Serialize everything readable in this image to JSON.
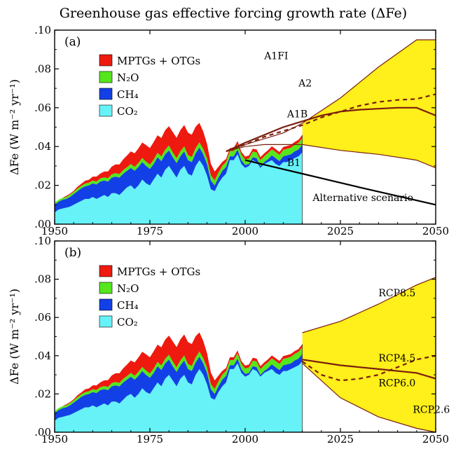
{
  "title": "Greenhouse gas effective forcing growth rate (ΔFe)",
  "colors": {
    "co2": "#66f2f7",
    "ch4": "#1340e6",
    "n2o": "#55e61c",
    "mptg": "#ee1a0f",
    "scenario_fill": "#ffef1a",
    "scenario_line": "#7a1e0e",
    "alternative_line": "#000000"
  },
  "chart_data": [
    {
      "type": "area",
      "panel_label": "(a)",
      "ylabel": "ΔFe (W m⁻² yr⁻¹)",
      "xlabel": "",
      "xlim": [
        1950,
        2050
      ],
      "ylim": [
        0,
        0.1
      ],
      "x_ticks": [
        "1950",
        "1975",
        "2000",
        "2025",
        "2050"
      ],
      "y_ticks": [
        ".00",
        ".02",
        ".04",
        ".06",
        ".08",
        ".10"
      ],
      "legend": [
        "MPTGs + OTGs",
        "N₂O",
        "CH₄",
        "CO₂"
      ],
      "historical": {
        "x": [
          1950,
          1951,
          1952,
          1953,
          1954,
          1955,
          1956,
          1957,
          1958,
          1959,
          1960,
          1961,
          1962,
          1963,
          1964,
          1965,
          1966,
          1967,
          1968,
          1969,
          1970,
          1971,
          1972,
          1973,
          1974,
          1975,
          1976,
          1977,
          1978,
          1979,
          1980,
          1981,
          1982,
          1983,
          1984,
          1985,
          1986,
          1987,
          1988,
          1989,
          1990,
          1991,
          1992,
          1993,
          1994,
          1995,
          1996,
          1997,
          1998,
          1999,
          2000,
          2001,
          2002,
          2003,
          2004,
          2005,
          2006,
          2007,
          2008,
          2009,
          2010,
          2011,
          2012,
          2013,
          2014,
          2015
        ],
        "co2": [
          0.006,
          0.0075,
          0.008,
          0.0085,
          0.009,
          0.01,
          0.011,
          0.012,
          0.013,
          0.013,
          0.014,
          0.013,
          0.014,
          0.015,
          0.014,
          0.016,
          0.016,
          0.015,
          0.017,
          0.019,
          0.02,
          0.018,
          0.02,
          0.023,
          0.021,
          0.02,
          0.023,
          0.026,
          0.024,
          0.028,
          0.03,
          0.027,
          0.024,
          0.028,
          0.03,
          0.026,
          0.025,
          0.03,
          0.033,
          0.03,
          0.025,
          0.018,
          0.017,
          0.021,
          0.024,
          0.026,
          0.033,
          0.033,
          0.036,
          0.031,
          0.029,
          0.03,
          0.033,
          0.032,
          0.029,
          0.031,
          0.032,
          0.033,
          0.031,
          0.03,
          0.032,
          0.032,
          0.033,
          0.034,
          0.035,
          0.037
        ],
        "ch4": [
          0.004,
          0.004,
          0.0045,
          0.0045,
          0.005,
          0.0055,
          0.006,
          0.0065,
          0.0065,
          0.007,
          0.007,
          0.0075,
          0.008,
          0.0075,
          0.008,
          0.008,
          0.0085,
          0.009,
          0.009,
          0.0085,
          0.009,
          0.0095,
          0.0095,
          0.009,
          0.009,
          0.0085,
          0.008,
          0.0085,
          0.0085,
          0.008,
          0.008,
          0.0075,
          0.0075,
          0.007,
          0.0075,
          0.007,
          0.007,
          0.0065,
          0.0065,
          0.006,
          0.006,
          0.0045,
          0.003,
          0.003,
          0.0035,
          0.0035,
          0.002,
          0.002,
          0.0025,
          0.002,
          0.0015,
          0.001,
          0.0015,
          0.002,
          0.001,
          0.001,
          0.0015,
          0.0025,
          0.003,
          0.0025,
          0.003,
          0.0035,
          0.003,
          0.0035,
          0.0035,
          0.004
        ],
        "n2o": [
          0.001,
          0.001,
          0.001,
          0.001,
          0.0012,
          0.0012,
          0.0013,
          0.0013,
          0.0014,
          0.0014,
          0.0015,
          0.0015,
          0.0016,
          0.0016,
          0.0017,
          0.0017,
          0.0018,
          0.0018,
          0.0019,
          0.0019,
          0.002,
          0.002,
          0.0021,
          0.0021,
          0.0022,
          0.0022,
          0.0023,
          0.0023,
          0.0024,
          0.0024,
          0.0025,
          0.0025,
          0.0025,
          0.0025,
          0.0026,
          0.0026,
          0.0026,
          0.0027,
          0.0027,
          0.0027,
          0.0028,
          0.0027,
          0.0026,
          0.0026,
          0.0026,
          0.0026,
          0.0027,
          0.0027,
          0.0028,
          0.0028,
          0.0028,
          0.0029,
          0.0029,
          0.003,
          0.003,
          0.003,
          0.0031,
          0.0031,
          0.0032,
          0.0032,
          0.0033,
          0.0033,
          0.0034,
          0.0034,
          0.0035,
          0.0035
        ],
        "mptg": [
          0.0,
          0.0,
          0.0,
          0.0005,
          0.0005,
          0.0005,
          0.001,
          0.001,
          0.0015,
          0.0015,
          0.002,
          0.0025,
          0.0025,
          0.003,
          0.0035,
          0.004,
          0.0045,
          0.005,
          0.0055,
          0.006,
          0.0065,
          0.007,
          0.0075,
          0.008,
          0.0085,
          0.0085,
          0.009,
          0.009,
          0.0095,
          0.01,
          0.01,
          0.0105,
          0.0105,
          0.011,
          0.011,
          0.0115,
          0.0115,
          0.011,
          0.01,
          0.009,
          0.0075,
          0.006,
          0.0045,
          0.003,
          0.002,
          0.0015,
          0.0015,
          0.0015,
          0.0015,
          0.0015,
          0.0015,
          0.0015,
          0.0015,
          0.0015,
          0.0015,
          0.0015,
          0.0015,
          0.0015,
          0.0015,
          0.0015,
          0.0015,
          0.0015,
          0.0015,
          0.0015,
          0.0015,
          0.0015
        ]
      },
      "projections": {
        "fill_x": [
          2015,
          2025,
          2035,
          2045,
          2050
        ],
        "fill_upper": [
          0.052,
          0.065,
          0.081,
          0.095,
          0.095
        ],
        "fill_lower": [
          0.041,
          0.038,
          0.036,
          0.033,
          0.029
        ],
        "series": [
          {
            "name": "A1FI",
            "x": [
              1995,
              2000,
              2005,
              2010,
              2015,
              2025,
              2035,
              2045,
              2050
            ],
            "y": [
              0.0375,
              0.041,
              0.044,
              0.047,
              0.052,
              0.065,
              0.081,
              0.095,
              0.095
            ],
            "style": "fill-edge"
          },
          {
            "name": "A2",
            "x": [
              1995,
              2000,
              2005,
              2010,
              2015,
              2020,
              2025,
              2030,
              2035,
              2040,
              2045,
              2050
            ],
            "y": [
              0.0375,
              0.041,
              0.045,
              0.048,
              0.051,
              0.055,
              0.058,
              0.061,
              0.063,
              0.064,
              0.0645,
              0.067
            ],
            "style": "dashed"
          },
          {
            "name": "A1B",
            "x": [
              1995,
              2000,
              2005,
              2010,
              2015,
              2020,
              2025,
              2030,
              2035,
              2040,
              2045,
              2050
            ],
            "y": [
              0.0375,
              0.042,
              0.046,
              0.05,
              0.053,
              0.056,
              0.058,
              0.059,
              0.0595,
              0.06,
              0.06,
              0.056
            ],
            "style": "solid"
          },
          {
            "name": "B1",
            "x": [
              1995,
              2000,
              2005,
              2010,
              2015,
              2025,
              2035,
              2045,
              2050
            ],
            "y": [
              0.0375,
              0.04,
              0.041,
              0.041,
              0.041,
              0.038,
              0.036,
              0.033,
              0.029
            ],
            "style": "fill-edge"
          },
          {
            "name": "Alternative scenario",
            "x": [
              2000,
              2015,
              2030,
              2050
            ],
            "y": [
              0.033,
              0.026,
              0.019,
              0.01
            ],
            "style": "black"
          }
        ],
        "labels": [
          {
            "text": "A1FI",
            "x": 2005,
            "y": 0.085
          },
          {
            "text": "A2",
            "x": 2014,
            "y": 0.071
          },
          {
            "text": "A1B",
            "x": 2011,
            "y": 0.055
          },
          {
            "text": "B1",
            "x": 2011,
            "y": 0.03
          },
          {
            "text": "Alternative scenario",
            "x": 2050,
            "y": 0.012
          }
        ]
      }
    },
    {
      "type": "area",
      "panel_label": "(b)",
      "ylabel": "ΔFe (W m⁻² yr⁻¹)",
      "xlabel": "",
      "xlim": [
        1950,
        2050
      ],
      "ylim": [
        0,
        0.1
      ],
      "x_ticks": [
        "1950",
        "1975",
        "2000",
        "2025",
        "2050"
      ],
      "y_ticks": [
        ".00",
        ".02",
        ".04",
        ".06",
        ".08",
        ".10"
      ],
      "legend": [
        "MPTGs + OTGs",
        "N₂O",
        "CH₄",
        "CO₂"
      ],
      "historical": "same as panel (a)",
      "projections": {
        "fill_x": [
          2015,
          2025,
          2035,
          2045,
          2050
        ],
        "fill_upper": [
          0.052,
          0.058,
          0.067,
          0.077,
          0.081
        ],
        "fill_lower": [
          0.036,
          0.018,
          0.008,
          0.002,
          0.0
        ],
        "series": [
          {
            "name": "RCP8.5",
            "x": [
              2015,
              2025,
              2035,
              2045,
              2050
            ],
            "y": [
              0.052,
              0.058,
              0.067,
              0.077,
              0.081
            ],
            "style": "fill-edge"
          },
          {
            "name": "RCP4.5",
            "x": [
              2015,
              2025,
              2035,
              2045,
              2050
            ],
            "y": [
              0.038,
              0.035,
              0.033,
              0.031,
              0.028
            ],
            "style": "solid"
          },
          {
            "name": "RCP6.0",
            "x": [
              2015,
              2020,
              2025,
              2030,
              2035,
              2040,
              2045,
              2050
            ],
            "y": [
              0.037,
              0.03,
              0.027,
              0.028,
              0.03,
              0.034,
              0.038,
              0.04
            ],
            "style": "dashed"
          },
          {
            "name": "RCP2.6",
            "x": [
              2015,
              2025,
              2035,
              2045,
              2050
            ],
            "y": [
              0.036,
              0.018,
              0.008,
              0.002,
              0.0
            ],
            "style": "fill-edge"
          }
        ],
        "labels": [
          {
            "text": "RCP8.5",
            "x": 2035,
            "y": 0.071
          },
          {
            "text": "RCP4.5",
            "x": 2035,
            "y": 0.037
          },
          {
            "text": "RCP6.0",
            "x": 2035,
            "y": 0.024
          },
          {
            "text": "RCP2.6",
            "x": 2044,
            "y": 0.01
          }
        ]
      }
    }
  ]
}
